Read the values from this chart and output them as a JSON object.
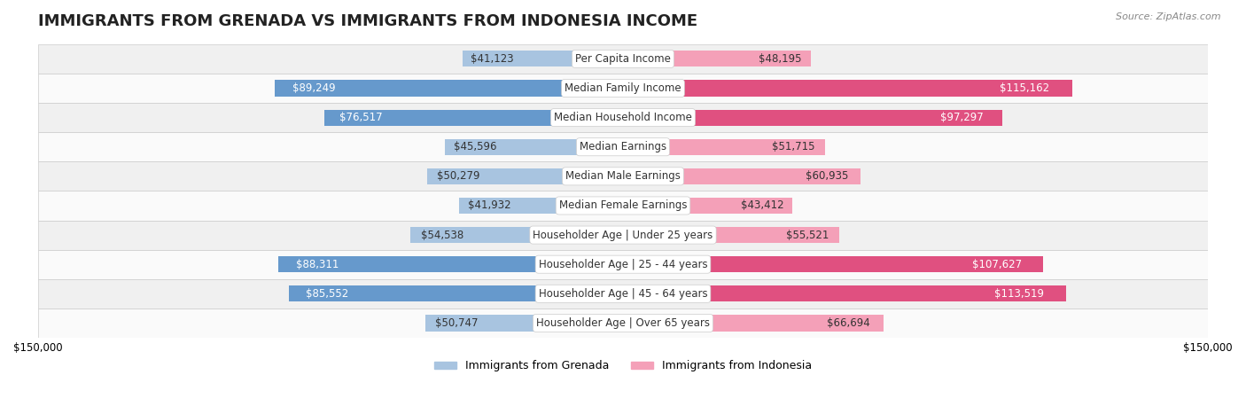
{
  "title": "IMMIGRANTS FROM GRENADA VS IMMIGRANTS FROM INDONESIA INCOME",
  "source": "Source: ZipAtlas.com",
  "categories": [
    "Per Capita Income",
    "Median Family Income",
    "Median Household Income",
    "Median Earnings",
    "Median Male Earnings",
    "Median Female Earnings",
    "Householder Age | Under 25 years",
    "Householder Age | 25 - 44 years",
    "Householder Age | 45 - 64 years",
    "Householder Age | Over 65 years"
  ],
  "grenada_values": [
    41123,
    89249,
    76517,
    45596,
    50279,
    41932,
    54538,
    88311,
    85552,
    50747
  ],
  "indonesia_values": [
    48195,
    115162,
    97297,
    51715,
    60935,
    43412,
    55521,
    107627,
    113519,
    66694
  ],
  "grenada_labels": [
    "$41,123",
    "$89,249",
    "$76,517",
    "$45,596",
    "$50,279",
    "$41,932",
    "$54,538",
    "$88,311",
    "$85,552",
    "$50,747"
  ],
  "indonesia_labels": [
    "$48,195",
    "$115,162",
    "$97,297",
    "$51,715",
    "$60,935",
    "$43,412",
    "$55,521",
    "$107,627",
    "$113,519",
    "$66,694"
  ],
  "grenada_color_light": "#a8c4e0",
  "grenada_color_dark": "#6699cc",
  "indonesia_color_light": "#f4a0b8",
  "indonesia_color_dark": "#e05080",
  "max_value": 150000,
  "bg_color": "#ffffff",
  "row_bg": "#f0f0f0",
  "row_bg_alt": "#fafafa",
  "label_color_dark": "#333333",
  "label_color_white": "#ffffff",
  "title_fontsize": 13,
  "label_fontsize": 8.5,
  "cat_fontsize": 8.5,
  "legend_fontsize": 9,
  "source_fontsize": 8
}
